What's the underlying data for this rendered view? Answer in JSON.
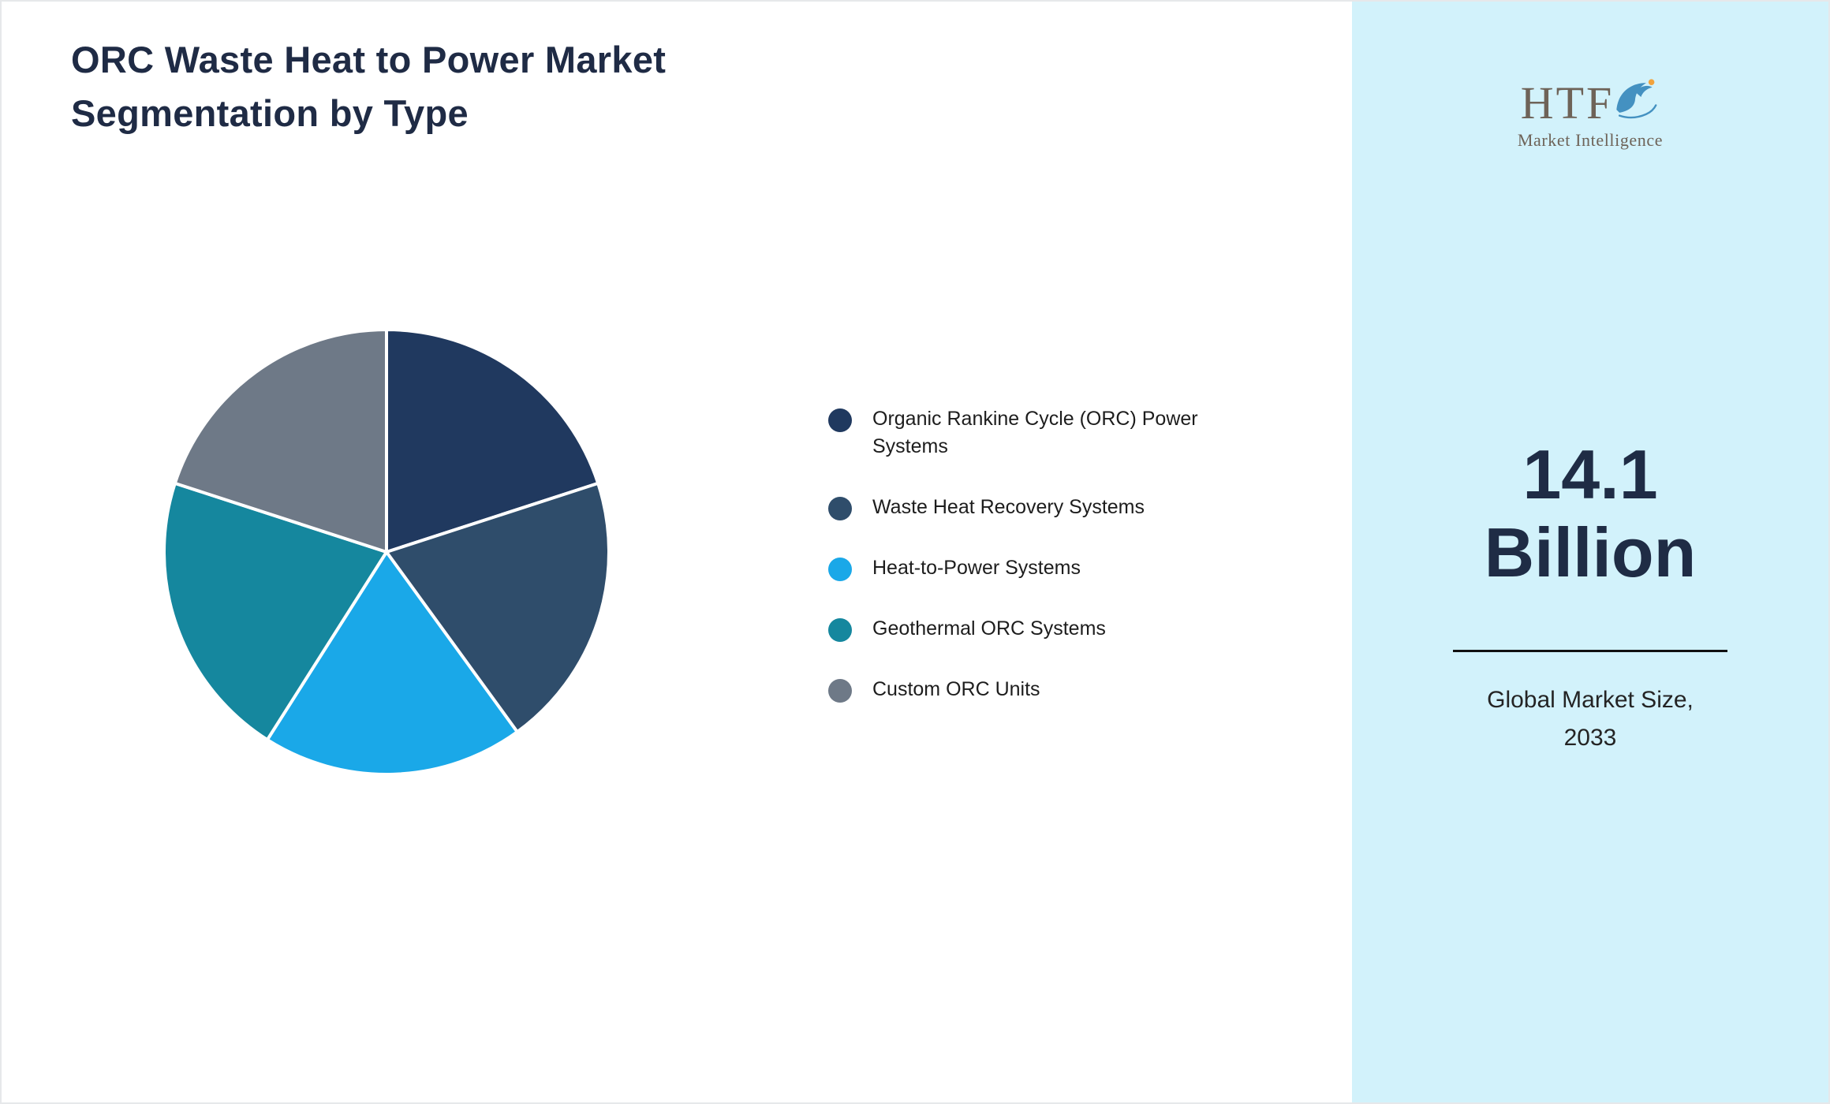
{
  "header": {
    "title_lines": [
      "ORC Waste Heat to Power Market",
      "Segmentation by Type"
    ]
  },
  "chart_data": {
    "type": "pie",
    "title": "ORC Waste Heat to Power Market Segmentation by Type",
    "labels": [
      "Organic Rankine Cycle (ORC) Power Systems",
      "Waste Heat Recovery Systems",
      "Heat-to-Power Systems",
      "Geothermal ORC Systems",
      "Custom ORC Units"
    ],
    "values": [
      20,
      20,
      19,
      21,
      20
    ],
    "colors": [
      "#20395f",
      "#2f4d6b",
      "#1aa8e8",
      "#15879e",
      "#6e7987"
    ],
    "start_angle_deg": 0,
    "direction": "clockwise",
    "legend_position": "right",
    "slice_border_color": "#ffffff"
  },
  "sidebar": {
    "background": "#d2f2fb",
    "logo": {
      "text": "HTF",
      "subtext": "Market Intelligence",
      "dolphin_icon_color": "#4491c1",
      "accent_dot_color": "#f2a33c"
    },
    "metric": {
      "value_lines": [
        "14.1",
        "Billion"
      ],
      "caption_lines": [
        "Global Market Size,",
        "2033"
      ]
    }
  }
}
